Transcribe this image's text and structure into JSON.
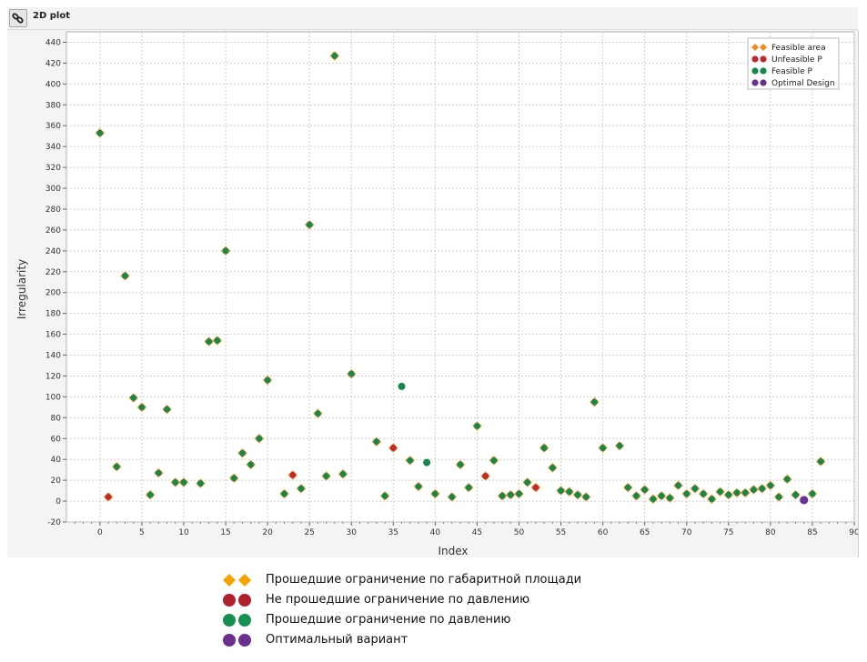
{
  "toolbar": {
    "title": "2D plot",
    "icon": "link-icon"
  },
  "colors": {
    "feasible_area_fill": "#f08a1e",
    "feasible_area_outline": "#f08a1e",
    "feasible_p": "#138a4c",
    "unfeasible_p": "#c0272d",
    "optimal": "#6b2f8f",
    "legend_orange": "#f5a300",
    "legend_red": "#b0202a",
    "legend_green": "#16904f",
    "legend_purple": "#6b2f8f"
  },
  "chart_data": {
    "type": "scatter",
    "xlabel": "Index",
    "ylabel": "Irregularity",
    "xlim": [
      -4,
      90
    ],
    "ylim": [
      -20,
      450
    ],
    "x_ticks": [
      0,
      5,
      10,
      15,
      20,
      25,
      30,
      35,
      40,
      45,
      50,
      55,
      60,
      65,
      70,
      75,
      80,
      85,
      90
    ],
    "y_ticks": [
      -20,
      0,
      20,
      40,
      60,
      80,
      100,
      120,
      140,
      160,
      180,
      200,
      220,
      240,
      260,
      280,
      300,
      320,
      340,
      360,
      380,
      400,
      420,
      440
    ],
    "grid": true,
    "legend_position": "top-right",
    "legend": [
      "Feasible area",
      "Unfeasible P",
      "Feasible P",
      "Optimal Design"
    ],
    "points": [
      {
        "x": 0,
        "y": 353,
        "c": "green"
      },
      {
        "x": 1,
        "y": 4,
        "c": "red"
      },
      {
        "x": 2,
        "y": 33,
        "c": "green"
      },
      {
        "x": 3,
        "y": 216,
        "c": "green"
      },
      {
        "x": 4,
        "y": 99,
        "c": "green"
      },
      {
        "x": 5,
        "y": 90,
        "c": "green"
      },
      {
        "x": 6,
        "y": 6,
        "c": "green"
      },
      {
        "x": 7,
        "y": 27,
        "c": "green"
      },
      {
        "x": 8,
        "y": 88,
        "c": "green"
      },
      {
        "x": 9,
        "y": 18,
        "c": "green"
      },
      {
        "x": 10,
        "y": 18,
        "c": "green"
      },
      {
        "x": 12,
        "y": 17,
        "c": "green"
      },
      {
        "x": 13,
        "y": 153,
        "c": "green"
      },
      {
        "x": 14,
        "y": 154,
        "c": "green"
      },
      {
        "x": 15,
        "y": 240,
        "c": "green"
      },
      {
        "x": 16,
        "y": 22,
        "c": "green"
      },
      {
        "x": 17,
        "y": 46,
        "c": "green"
      },
      {
        "x": 18,
        "y": 35,
        "c": "green"
      },
      {
        "x": 19,
        "y": 60,
        "c": "green"
      },
      {
        "x": 20,
        "y": 116,
        "c": "green"
      },
      {
        "x": 22,
        "y": 7,
        "c": "green"
      },
      {
        "x": 23,
        "y": 25,
        "c": "red"
      },
      {
        "x": 24,
        "y": 12,
        "c": "green"
      },
      {
        "x": 25,
        "y": 265,
        "c": "green"
      },
      {
        "x": 26,
        "y": 84,
        "c": "green"
      },
      {
        "x": 27,
        "y": 24,
        "c": "green"
      },
      {
        "x": 28,
        "y": 427,
        "c": "green"
      },
      {
        "x": 29,
        "y": 26,
        "c": "green"
      },
      {
        "x": 30,
        "y": 122,
        "c": "green"
      },
      {
        "x": 33,
        "y": 57,
        "c": "green"
      },
      {
        "x": 34,
        "y": 5,
        "c": "green"
      },
      {
        "x": 35,
        "y": 51,
        "c": "red"
      },
      {
        "x": 37,
        "y": 39,
        "c": "green"
      },
      {
        "x": 38,
        "y": 14,
        "c": "green"
      },
      {
        "x": 40,
        "y": 7,
        "c": "green"
      },
      {
        "x": 42,
        "y": 4,
        "c": "green"
      },
      {
        "x": 43,
        "y": 35,
        "c": "green"
      },
      {
        "x": 44,
        "y": 13,
        "c": "green"
      },
      {
        "x": 45,
        "y": 72,
        "c": "green"
      },
      {
        "x": 46,
        "y": 24,
        "c": "red"
      },
      {
        "x": 47,
        "y": 39,
        "c": "green"
      },
      {
        "x": 48,
        "y": 5,
        "c": "green"
      },
      {
        "x": 49,
        "y": 6,
        "c": "green"
      },
      {
        "x": 50,
        "y": 7,
        "c": "green"
      },
      {
        "x": 51,
        "y": 18,
        "c": "green"
      },
      {
        "x": 52,
        "y": 13,
        "c": "red"
      },
      {
        "x": 53,
        "y": 51,
        "c": "green"
      },
      {
        "x": 54,
        "y": 32,
        "c": "green"
      },
      {
        "x": 55,
        "y": 10,
        "c": "green"
      },
      {
        "x": 56,
        "y": 9,
        "c": "green"
      },
      {
        "x": 57,
        "y": 6,
        "c": "green"
      },
      {
        "x": 58,
        "y": 4,
        "c": "green"
      },
      {
        "x": 59,
        "y": 95,
        "c": "green"
      },
      {
        "x": 60,
        "y": 51,
        "c": "green"
      },
      {
        "x": 62,
        "y": 53,
        "c": "green"
      },
      {
        "x": 63,
        "y": 13,
        "c": "green"
      },
      {
        "x": 64,
        "y": 5,
        "c": "green"
      },
      {
        "x": 65,
        "y": 11,
        "c": "green"
      },
      {
        "x": 66,
        "y": 2,
        "c": "green"
      },
      {
        "x": 67,
        "y": 5,
        "c": "green"
      },
      {
        "x": 68,
        "y": 3,
        "c": "green"
      },
      {
        "x": 69,
        "y": 15,
        "c": "green"
      },
      {
        "x": 70,
        "y": 7,
        "c": "green"
      },
      {
        "x": 71,
        "y": 12,
        "c": "green"
      },
      {
        "x": 72,
        "y": 7,
        "c": "green"
      },
      {
        "x": 73,
        "y": 2,
        "c": "green"
      },
      {
        "x": 74,
        "y": 9,
        "c": "green"
      },
      {
        "x": 75,
        "y": 6,
        "c": "green"
      },
      {
        "x": 76,
        "y": 8,
        "c": "green"
      },
      {
        "x": 77,
        "y": 8,
        "c": "green"
      },
      {
        "x": 78,
        "y": 11,
        "c": "green"
      },
      {
        "x": 79,
        "y": 12,
        "c": "green"
      },
      {
        "x": 80,
        "y": 15,
        "c": "green"
      },
      {
        "x": 81,
        "y": 4,
        "c": "green"
      },
      {
        "x": 82,
        "y": 21,
        "c": "green"
      },
      {
        "x": 83,
        "y": 6,
        "c": "green"
      },
      {
        "x": 85,
        "y": 7,
        "c": "green"
      },
      {
        "x": 86,
        "y": 38,
        "c": "green"
      }
    ],
    "feasible_p_only": [
      {
        "x": 36,
        "y": 110
      },
      {
        "x": 39,
        "y": 37
      }
    ],
    "optimal": [
      {
        "x": 84,
        "y": 1
      }
    ]
  },
  "bottom_legend": [
    {
      "marker": "diamond",
      "color_key": "legend_orange",
      "label": "Прошедшие ограничение по габаритной площади"
    },
    {
      "marker": "circle",
      "color_key": "legend_red",
      "label": "Не прошедшие ограничение по давлению"
    },
    {
      "marker": "circle",
      "color_key": "legend_green",
      "label": "Прошедшие ограничение по давлению"
    },
    {
      "marker": "circle",
      "color_key": "legend_purple",
      "label": "Оптимальный вариант"
    }
  ]
}
